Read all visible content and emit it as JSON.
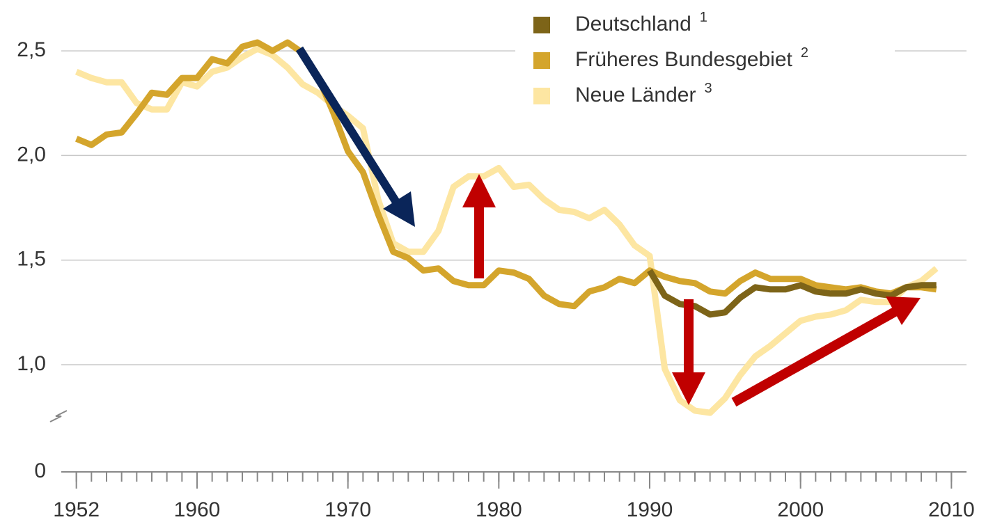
{
  "chart_data": {
    "type": "line",
    "x": [
      1952,
      1953,
      1954,
      1955,
      1956,
      1957,
      1958,
      1959,
      1960,
      1961,
      1962,
      1963,
      1964,
      1965,
      1966,
      1967,
      1968,
      1969,
      1970,
      1971,
      1972,
      1973,
      1974,
      1975,
      1976,
      1977,
      1978,
      1979,
      1980,
      1981,
      1982,
      1983,
      1984,
      1985,
      1986,
      1987,
      1988,
      1989,
      1990,
      1991,
      1992,
      1993,
      1994,
      1995,
      1996,
      1997,
      1998,
      1999,
      2000,
      2001,
      2002,
      2003,
      2004,
      2005,
      2006,
      2007,
      2008,
      2009
    ],
    "series": [
      {
        "name": "Neue Länder",
        "footnote": "3",
        "color": "#fde6a2",
        "values": [
          2.4,
          2.37,
          2.35,
          2.35,
          2.25,
          2.22,
          2.22,
          2.35,
          2.33,
          2.4,
          2.42,
          2.47,
          2.51,
          2.48,
          2.42,
          2.34,
          2.3,
          2.24,
          2.19,
          2.13,
          1.79,
          1.58,
          1.54,
          1.54,
          1.64,
          1.85,
          1.9,
          1.9,
          1.94,
          1.85,
          1.86,
          1.79,
          1.74,
          1.73,
          1.7,
          1.74,
          1.67,
          1.57,
          1.52,
          0.98,
          0.83,
          0.78,
          0.77,
          0.84,
          0.95,
          1.04,
          1.09,
          1.15,
          1.21,
          1.23,
          1.24,
          1.26,
          1.31,
          1.3,
          1.3,
          1.37,
          1.4,
          1.46
        ]
      },
      {
        "name": "Früheres Bundesgebiet",
        "footnote": "2",
        "color": "#d4a52c",
        "values": [
          2.08,
          2.05,
          2.1,
          2.11,
          2.2,
          2.3,
          2.29,
          2.37,
          2.37,
          2.46,
          2.44,
          2.52,
          2.54,
          2.5,
          2.54,
          2.49,
          2.38,
          2.21,
          2.02,
          1.92,
          1.72,
          1.54,
          1.51,
          1.45,
          1.46,
          1.4,
          1.38,
          1.38,
          1.45,
          1.44,
          1.41,
          1.33,
          1.29,
          1.28,
          1.35,
          1.37,
          1.41,
          1.39,
          1.45,
          1.42,
          1.4,
          1.39,
          1.35,
          1.34,
          1.4,
          1.44,
          1.41,
          1.41,
          1.41,
          1.38,
          1.37,
          1.36,
          1.37,
          1.35,
          1.34,
          1.37,
          1.37,
          1.36
        ]
      },
      {
        "name": "Deutschland",
        "footnote": "1",
        "color": "#7d6418",
        "values": [
          null,
          null,
          null,
          null,
          null,
          null,
          null,
          null,
          null,
          null,
          null,
          null,
          null,
          null,
          null,
          null,
          null,
          null,
          null,
          null,
          null,
          null,
          null,
          null,
          null,
          null,
          null,
          null,
          null,
          null,
          null,
          null,
          null,
          null,
          null,
          null,
          null,
          null,
          1.45,
          1.33,
          1.29,
          1.28,
          1.24,
          1.25,
          1.32,
          1.37,
          1.36,
          1.36,
          1.38,
          1.35,
          1.34,
          1.34,
          1.36,
          1.34,
          1.33,
          1.37,
          1.38,
          1.38
        ]
      }
    ],
    "legend_order": [
      2,
      1,
      0
    ],
    "xlim": [
      1951,
      2011
    ],
    "xticks": [
      1952,
      1960,
      1970,
      1980,
      1990,
      2000,
      2010
    ],
    "x_minor_ticks": [
      1952,
      1953,
      1954,
      1955,
      1956,
      1957,
      1958,
      1959,
      1960,
      1961,
      1962,
      1963,
      1964,
      1965,
      1966,
      1967,
      1968,
      1969,
      1970,
      1971,
      1972,
      1973,
      1974,
      1975,
      1976,
      1977,
      1978,
      1979,
      1980,
      1981,
      1982,
      1983,
      1984,
      1985,
      1986,
      1987,
      1988,
      1989,
      1990,
      1991,
      1992,
      1993,
      1994,
      1995,
      1996,
      1997,
      1998,
      1999,
      2000,
      2001,
      2002,
      2003,
      2004,
      2005,
      2006,
      2007,
      2008,
      2009,
      2010
    ],
    "ylim": [
      0,
      2.6
    ],
    "yticks": [
      0,
      {
        "value": 1.0,
        "label": "1,0"
      },
      {
        "value": 1.5,
        "label": "1,5"
      },
      {
        "value": 2.0,
        "label": "2,0"
      },
      {
        "value": 2.5,
        "label": "2,5"
      }
    ],
    "axis_break": true,
    "grid": true
  }
}
